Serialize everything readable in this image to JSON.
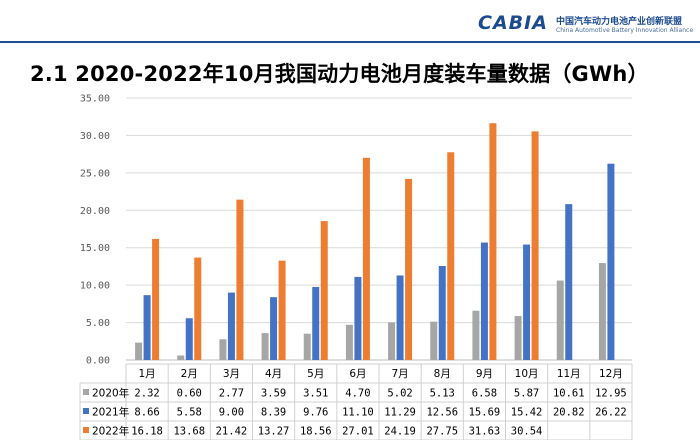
{
  "logo": {
    "mark": "CABIA",
    "cn": "中国汽车动力电池产业创新联盟",
    "en": "China Automotive Battery Innovation Alliance"
  },
  "page_title": "2.1 2020-2022年10月我国动力电池月度装车量数据（GWh）",
  "colors": {
    "s2020": "#a6a6a6",
    "s2021": "#4472c4",
    "s2022": "#ed7d31",
    "grid": "#d9d9d9",
    "rule": "#1f4e91"
  },
  "chart_data": {
    "type": "bar",
    "title": "",
    "ylim": [
      0,
      35
    ],
    "yticks": [
      "0.00",
      "5.00",
      "10.00",
      "15.00",
      "20.00",
      "25.00",
      "30.00",
      "35.00"
    ],
    "categories": [
      "1月",
      "2月",
      "3月",
      "4月",
      "5月",
      "6月",
      "7月",
      "8月",
      "9月",
      "10月",
      "11月",
      "12月"
    ],
    "series": [
      {
        "name": "2020年",
        "color": "#a6a6a6",
        "values": [
          2.32,
          0.6,
          2.77,
          3.59,
          3.51,
          4.7,
          5.02,
          5.13,
          6.58,
          5.87,
          10.61,
          12.95
        ],
        "labels": [
          "2.32",
          "0.60",
          "2.77",
          "3.59",
          "3.51",
          "4.70",
          "5.02",
          "5.13",
          "6.58",
          "5.87",
          "10.61",
          "12.95"
        ]
      },
      {
        "name": "2021年",
        "color": "#4472c4",
        "values": [
          8.66,
          5.58,
          9.0,
          8.39,
          9.76,
          11.1,
          11.29,
          12.56,
          15.69,
          15.42,
          20.82,
          26.22
        ],
        "labels": [
          "8.66",
          "5.58",
          "9.00",
          "8.39",
          "9.76",
          "11.10",
          "11.29",
          "12.56",
          "15.69",
          "15.42",
          "20.82",
          "26.22"
        ]
      },
      {
        "name": "2022年",
        "color": "#ed7d31",
        "values": [
          16.18,
          13.68,
          21.42,
          13.27,
          18.56,
          27.01,
          24.19,
          27.75,
          31.63,
          30.54,
          null,
          null
        ],
        "labels": [
          "16.18",
          "13.68",
          "21.42",
          "13.27",
          "18.56",
          "27.01",
          "24.19",
          "27.75",
          "31.63",
          "30.54",
          "",
          ""
        ]
      }
    ],
    "legend": "data-table-below",
    "grid": true
  }
}
